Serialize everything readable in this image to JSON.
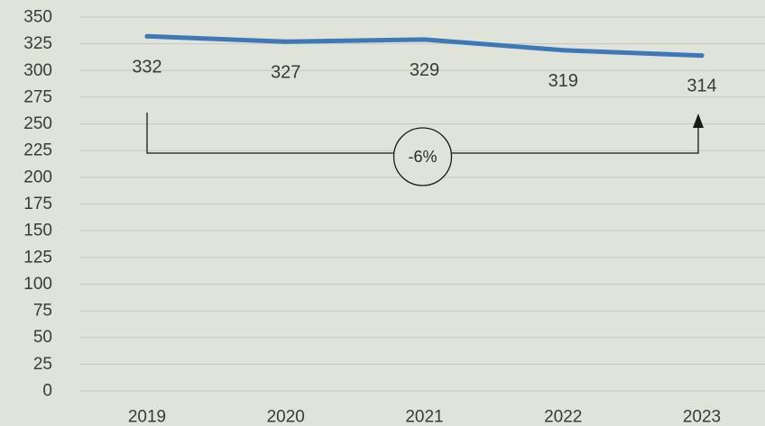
{
  "chart_data": {
    "type": "line",
    "categories": [
      "2019",
      "2020",
      "2021",
      "2022",
      "2023"
    ],
    "series": [
      {
        "values": [
          332,
          327,
          329,
          319,
          314
        ],
        "color": "#3d78b8"
      }
    ],
    "data_labels": [
      "332",
      "327",
      "329",
      "319",
      "314"
    ],
    "ylim": [
      0,
      350
    ],
    "y_ticks": [
      0,
      25,
      50,
      75,
      100,
      125,
      150,
      175,
      200,
      225,
      250,
      275,
      300,
      325,
      350
    ],
    "grid": true,
    "title": "",
    "xlabel": "",
    "ylabel": "",
    "annotation": {
      "text": "-6%",
      "from_category": "2019",
      "to_category": "2023"
    }
  }
}
